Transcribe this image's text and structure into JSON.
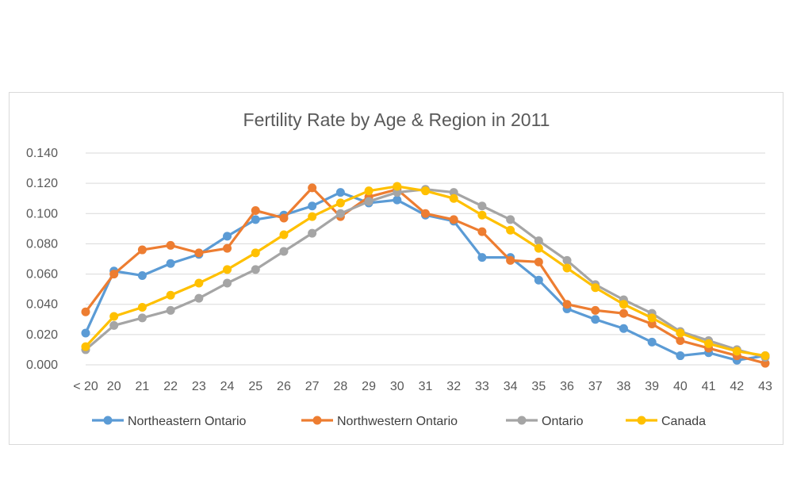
{
  "chart_data": {
    "type": "line",
    "title": "Fertility Rate by Age & Region in 2011",
    "xlabel": "",
    "ylabel": "",
    "categories": [
      "< 20",
      "20",
      "21",
      "22",
      "23",
      "24",
      "25",
      "26",
      "27",
      "28",
      "29",
      "30",
      "31",
      "32",
      "33",
      "34",
      "35",
      "36",
      "37",
      "38",
      "39",
      "40",
      "41",
      "42",
      "43"
    ],
    "ylim": [
      0,
      0.14
    ],
    "yticks": [
      "0.000",
      "0.020",
      "0.040",
      "0.060",
      "0.080",
      "0.100",
      "0.120",
      "0.140"
    ],
    "grid": true,
    "legend_position": "bottom",
    "series": [
      {
        "name": "Northeastern Ontario",
        "color": "#5b9bd5",
        "values": [
          0.021,
          0.062,
          0.059,
          0.067,
          0.073,
          0.085,
          0.096,
          0.099,
          0.105,
          0.114,
          0.107,
          0.109,
          0.099,
          0.095,
          0.071,
          0.071,
          0.056,
          0.037,
          0.03,
          0.024,
          0.015,
          0.006,
          0.008,
          0.003,
          0.006
        ]
      },
      {
        "name": "Northwestern Ontario",
        "color": "#ed7d31",
        "values": [
          0.035,
          0.06,
          0.076,
          0.079,
          0.074,
          0.077,
          0.102,
          0.097,
          0.117,
          0.098,
          0.111,
          0.116,
          0.1,
          0.096,
          0.088,
          0.069,
          0.068,
          0.04,
          0.036,
          0.034,
          0.027,
          0.016,
          0.011,
          0.006,
          0.001
        ]
      },
      {
        "name": "Ontario",
        "color": "#a5a5a5",
        "values": [
          0.01,
          0.026,
          0.031,
          0.036,
          0.044,
          0.054,
          0.063,
          0.075,
          0.087,
          0.1,
          0.108,
          0.114,
          0.116,
          0.114,
          0.105,
          0.096,
          0.082,
          0.069,
          0.053,
          0.043,
          0.034,
          0.022,
          0.016,
          0.01,
          0.005
        ]
      },
      {
        "name": "Canada",
        "color": "#ffc000",
        "values": [
          0.012,
          0.032,
          0.038,
          0.046,
          0.054,
          0.063,
          0.074,
          0.086,
          0.098,
          0.107,
          0.115,
          0.118,
          0.115,
          0.11,
          0.099,
          0.089,
          0.077,
          0.064,
          0.051,
          0.04,
          0.031,
          0.021,
          0.014,
          0.009,
          0.006
        ]
      }
    ]
  }
}
